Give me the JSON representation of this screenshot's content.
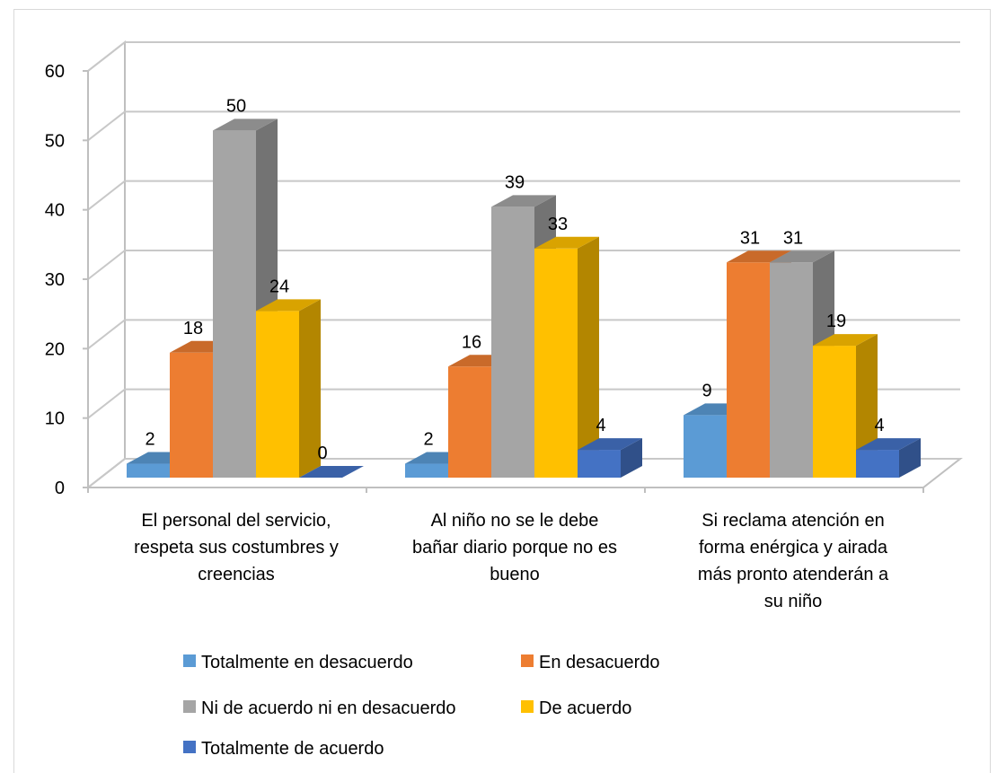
{
  "chart_data": {
    "type": "bar",
    "categories": [
      [
        "El personal del servicio,",
        "respeta sus costumbres y",
        "creencias"
      ],
      [
        "Al niño no se le debe",
        "bañar diario porque no es",
        "bueno"
      ],
      [
        "Si reclama atención en",
        "forma enérgica y airada",
        "más pronto atenderán a",
        "su niño"
      ]
    ],
    "series": [
      {
        "name": "Totalmente en desacuerdo",
        "color": "#5B9BD5",
        "values": [
          2,
          2,
          9
        ]
      },
      {
        "name": "En desacuerdo",
        "color": "#ED7D31",
        "values": [
          18,
          16,
          31
        ]
      },
      {
        "name": "Ni de acuerdo ni en desacuerdo",
        "color": "#A5A5A5",
        "values": [
          50,
          39,
          31
        ]
      },
      {
        "name": "De acuerdo",
        "color": "#FFC000",
        "values": [
          24,
          33,
          19
        ]
      },
      {
        "name": "Totalmente de acuerdo",
        "color": "#4472C4",
        "values": [
          0,
          4,
          4
        ]
      }
    ],
    "ylim": [
      0,
      60
    ],
    "yticks": [
      0,
      10,
      20,
      30,
      40,
      50,
      60
    ],
    "grid": true,
    "three_d": true,
    "legend_position": "bottom"
  }
}
